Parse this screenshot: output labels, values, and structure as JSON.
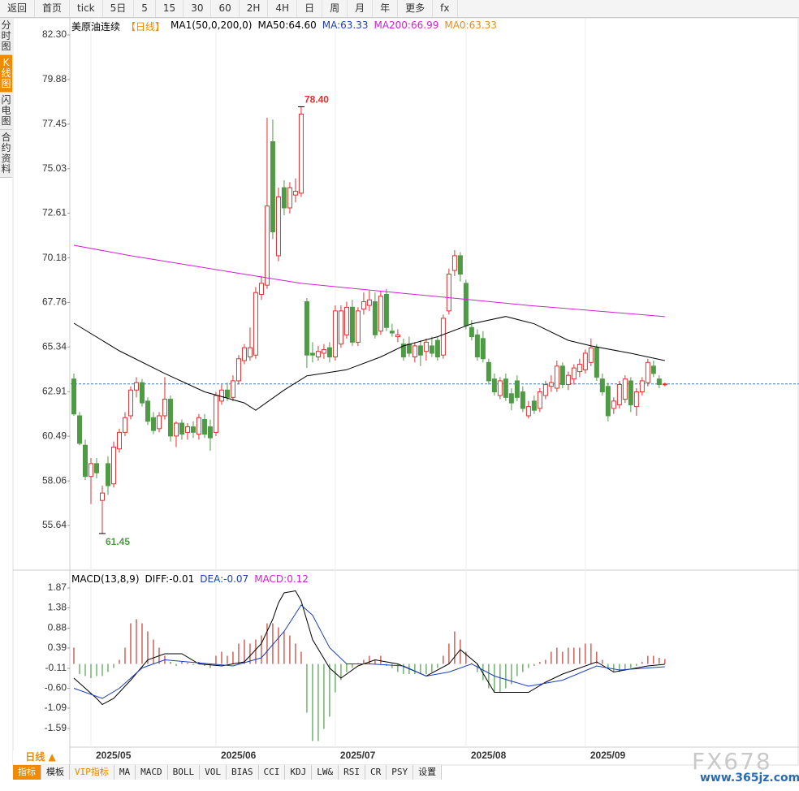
{
  "toolbar": [
    "返回",
    "首页",
    "tick",
    "5日",
    "5",
    "15",
    "30",
    "60",
    "2H",
    "4H",
    "日",
    "周",
    "月",
    "年",
    "更多",
    "fx"
  ],
  "sidebar": [
    "分时图",
    "K线图",
    "闪电图",
    "合约资料"
  ],
  "tabs": [
    "指标",
    "模板",
    "VIP指标",
    "MA",
    "MACD",
    "BOLL",
    "VOL",
    "BIAS",
    "CCI",
    "KDJ",
    "LW&",
    "RSI",
    "CR",
    "PSY",
    "设置"
  ],
  "period": "日线 ▲",
  "watermark": "FX678",
  "watermark_url": "www.365jz.com",
  "chart_data": [
    {
      "type": "candlestick",
      "title": "美原油连续",
      "subtitle": "【日线】",
      "legend": [
        "MA1(50,0,200,0)",
        "MA50:64.60",
        "MA:63.33",
        "MA200:66.99",
        "MA0:63.33"
      ],
      "legend_colors": [
        "#000000",
        "#000000",
        "#1a3fb8",
        "#d21fd2",
        "#e88b1a"
      ],
      "up_color": "#e0302f",
      "down_color": "#4f9a45",
      "xlim": [
        -0.57,
        127.6
      ],
      "ylim": [
        53.3,
        83.23
      ],
      "yticks": [
        {
          "value": 82.3,
          "label": "82.30"
        },
        79.88,
        77.45,
        75.03,
        72.61,
        70.18,
        67.76,
        65.34,
        62.91,
        60.49,
        58.06,
        55.64
      ],
      "xticks": [
        {
          "value": 3,
          "label": "2025/05"
        },
        {
          "value": 25,
          "label": "2025/06"
        },
        {
          "value": 46,
          "label": "2025/07"
        },
        {
          "value": 69,
          "label": "2025/08"
        },
        {
          "value": 90,
          "label": "2025/09"
        }
      ],
      "grid": true,
      "last_price": 63.33,
      "last_price_color": "#3a78c2",
      "annotations": [
        "78.40",
        "61.45"
      ],
      "annotation_colors": [
        "#e0302f",
        "#4f9a45"
      ],
      "ohlc": [
        [
          63.6,
          63.9,
          61.6,
          61.7
        ],
        [
          61.6,
          61.8,
          60.0,
          60.1
        ],
        [
          60.0,
          60.3,
          58.1,
          58.3
        ],
        [
          58.3,
          59.3,
          56.8,
          59.0
        ],
        [
          59.0,
          59.3,
          58.2,
          58.5
        ],
        [
          57.0,
          57.8,
          55.2,
          57.4
        ],
        [
          59.0,
          59.4,
          57.3,
          57.8
        ],
        [
          57.9,
          60.2,
          57.7,
          59.9
        ],
        [
          59.8,
          60.9,
          59.6,
          60.7
        ],
        [
          60.7,
          61.8,
          60.5,
          61.5
        ],
        [
          61.6,
          63.2,
          61.4,
          63.0
        ],
        [
          63.0,
          63.7,
          62.6,
          63.4
        ],
        [
          63.4,
          63.6,
          62.1,
          62.3
        ],
        [
          62.4,
          62.6,
          61.1,
          61.3
        ],
        [
          61.5,
          61.8,
          60.6,
          60.8
        ],
        [
          60.9,
          61.8,
          60.7,
          61.6
        ],
        [
          61.6,
          63.7,
          61.4,
          62.5
        ],
        [
          62.5,
          62.7,
          60.2,
          60.5
        ],
        [
          60.5,
          61.3,
          59.9,
          61.2
        ],
        [
          61.2,
          61.4,
          60.3,
          60.6
        ],
        [
          60.7,
          61.2,
          60.3,
          61.0
        ],
        [
          61.0,
          61.3,
          60.4,
          60.7
        ],
        [
          60.6,
          61.7,
          60.3,
          61.5
        ],
        [
          61.4,
          61.7,
          60.4,
          60.6
        ],
        [
          61.0,
          61.4,
          59.7,
          60.4
        ],
        [
          60.7,
          62.9,
          60.5,
          62.7
        ],
        [
          62.4,
          63.3,
          62.2,
          63.0
        ],
        [
          63.0,
          63.4,
          62.4,
          62.6
        ],
        [
          62.6,
          63.8,
          62.4,
          63.5
        ],
        [
          63.5,
          64.9,
          63.3,
          64.7
        ],
        [
          64.6,
          65.5,
          64.4,
          65.3
        ],
        [
          64.8,
          66.4,
          64.6,
          65.3
        ],
        [
          64.9,
          68.6,
          64.7,
          68.3
        ],
        [
          68.2,
          69.2,
          67.9,
          68.8
        ],
        [
          68.7,
          77.8,
          68.5,
          73.0
        ],
        [
          76.5,
          77.7,
          71.2,
          71.6
        ],
        [
          70.3,
          74.0,
          70.0,
          73.5
        ],
        [
          74.0,
          74.4,
          72.5,
          72.9
        ],
        [
          72.9,
          74.3,
          72.6,
          74.0
        ],
        [
          73.6,
          74.5,
          73.2,
          73.8
        ],
        [
          73.7,
          78.4,
          73.5,
          78.0
        ],
        [
          67.8,
          68.0,
          64.2,
          64.9
        ],
        [
          65.0,
          65.6,
          64.5,
          64.9
        ],
        [
          64.8,
          65.4,
          64.6,
          65.1
        ],
        [
          65.0,
          65.5,
          64.7,
          65.2
        ],
        [
          65.3,
          65.6,
          64.5,
          64.8
        ],
        [
          64.8,
          67.6,
          64.6,
          67.3
        ],
        [
          65.5,
          67.6,
          65.3,
          67.3
        ],
        [
          66.0,
          67.8,
          65.8,
          67.5
        ],
        [
          67.5,
          67.9,
          65.4,
          65.6
        ],
        [
          65.6,
          67.5,
          65.4,
          67.3
        ],
        [
          67.4,
          68.3,
          67.1,
          67.8
        ],
        [
          67.6,
          68.4,
          67.3,
          67.9
        ],
        [
          67.8,
          68.3,
          65.8,
          66.0
        ],
        [
          66.2,
          68.4,
          66.0,
          68.1
        ],
        [
          68.2,
          68.5,
          66.2,
          66.4
        ],
        [
          66.2,
          66.6,
          65.9,
          66.1
        ],
        [
          65.9,
          66.3,
          65.6,
          66.0
        ],
        [
          65.5,
          65.8,
          64.6,
          64.8
        ],
        [
          65.5,
          65.9,
          64.8,
          65.0
        ],
        [
          64.8,
          65.6,
          64.5,
          65.4
        ],
        [
          65.4,
          65.7,
          64.3,
          64.9
        ],
        [
          65.1,
          65.8,
          64.6,
          65.6
        ],
        [
          65.4,
          65.9,
          64.8,
          65.0
        ],
        [
          65.7,
          65.9,
          64.6,
          64.8
        ],
        [
          64.9,
          67.1,
          64.7,
          66.9
        ],
        [
          67.3,
          69.6,
          67.1,
          69.3
        ],
        [
          69.5,
          70.6,
          69.2,
          70.3
        ],
        [
          70.3,
          70.5,
          68.9,
          69.3
        ],
        [
          68.8,
          69.0,
          66.3,
          66.5
        ],
        [
          66.4,
          66.8,
          65.7,
          65.9
        ],
        [
          66.0,
          66.3,
          64.6,
          64.8
        ],
        [
          65.8,
          66.2,
          64.5,
          64.7
        ],
        [
          64.5,
          64.7,
          63.3,
          63.5
        ],
        [
          63.6,
          63.9,
          62.7,
          62.9
        ],
        [
          62.7,
          63.7,
          62.5,
          63.5
        ],
        [
          63.6,
          63.9,
          62.4,
          62.6
        ],
        [
          62.8,
          63.1,
          61.9,
          62.3
        ],
        [
          63.5,
          63.8,
          62.4,
          62.6
        ],
        [
          62.9,
          63.2,
          61.8,
          62.0
        ],
        [
          61.6,
          62.4,
          61.45,
          62.1
        ],
        [
          62.4,
          62.7,
          61.7,
          61.9
        ],
        [
          62.0,
          63.1,
          61.8,
          62.9
        ],
        [
          62.7,
          63.5,
          62.5,
          63.3
        ],
        [
          63.2,
          63.8,
          62.9,
          63.4
        ],
        [
          63.1,
          64.6,
          62.9,
          64.3
        ],
        [
          64.3,
          64.5,
          63.1,
          63.3
        ],
        [
          63.3,
          64.0,
          63.0,
          63.8
        ],
        [
          63.6,
          64.4,
          63.3,
          64.2
        ],
        [
          64.0,
          64.7,
          63.7,
          64.4
        ],
        [
          64.1,
          65.2,
          63.9,
          65.0
        ],
        [
          64.5,
          65.8,
          64.3,
          65.3
        ],
        [
          65.3,
          65.5,
          63.5,
          63.7
        ],
        [
          63.6,
          63.9,
          62.7,
          62.9
        ],
        [
          63.2,
          63.4,
          61.3,
          61.6
        ],
        [
          62.0,
          62.6,
          61.7,
          62.4
        ],
        [
          62.2,
          63.5,
          62.0,
          63.3
        ],
        [
          62.5,
          63.8,
          62.3,
          63.6
        ],
        [
          63.5,
          63.7,
          61.8,
          62.2
        ],
        [
          62.1,
          63.1,
          61.6,
          62.9
        ],
        [
          62.9,
          63.7,
          62.7,
          63.5
        ],
        [
          63.4,
          64.7,
          63.2,
          64.5
        ],
        [
          64.3,
          64.6,
          63.7,
          63.9
        ],
        [
          63.6,
          63.8,
          63.1,
          63.3
        ],
        [
          63.3,
          63.4,
          63.2,
          63.33
        ]
      ],
      "lines": [
        {
          "color": "#000000",
          "x": [
            0,
            8,
            16,
            23,
            30,
            32,
            37,
            41,
            48,
            54,
            58,
            64,
            70,
            76,
            81,
            87,
            91,
            98,
            104
          ],
          "values": [
            66.63,
            65.13,
            63.9,
            62.9,
            62.3,
            61.9,
            63.0,
            63.77,
            64.1,
            64.8,
            65.4,
            65.9,
            66.6,
            67.0,
            66.6,
            65.7,
            65.4,
            65.0,
            64.6
          ]
        },
        {
          "color": "#d21fd2",
          "x": [
            0,
            10,
            20,
            30,
            40,
            50,
            60,
            70,
            80,
            90,
            104
          ],
          "values": [
            70.87,
            70.3,
            69.8,
            69.3,
            68.8,
            68.5,
            68.2,
            67.9,
            67.6,
            67.35,
            66.99
          ]
        }
      ]
    },
    {
      "type": "macd",
      "title": "MACD(13,8,9)",
      "legend": [
        "DIFF:-0.01",
        "DEA:-0.07",
        "MACD:0.12"
      ],
      "legend_colors": [
        "#000000",
        "#1a3fb8",
        "#d21fd2"
      ],
      "xlim": [
        -0.57,
        127.6
      ],
      "ylim": [
        -2.01,
        2.25
      ],
      "yticks": [
        1.87,
        1.38,
        0.88,
        0.39,
        -0.11,
        {
          "value": -0.6,
          "label": "-0.60"
        },
        -1.09,
        -1.59
      ],
      "up_color": "#c23b32",
      "down_color": "#4aa04a",
      "values": [
        0.4,
        -0.25,
        -0.3,
        -0.35,
        -0.3,
        -0.3,
        -0.2,
        -0.1,
        0.1,
        0.4,
        1.0,
        1.1,
        1.0,
        0.8,
        0.6,
        0.4,
        0.2,
        0.05,
        -0.05,
        0.05,
        0.03,
        -0.03,
        0.05,
        -0.05,
        -0.1,
        0.2,
        0.3,
        0.2,
        0.3,
        0.5,
        0.6,
        0.5,
        0.6,
        0.7,
        1.0,
        1.0,
        0.9,
        0.8,
        0.7,
        0.5,
        0.3,
        -1.2,
        -1.9,
        -1.9,
        -1.6,
        -1.3,
        -0.7,
        -0.4,
        -0.2,
        -0.1,
        0.02,
        0.1,
        0.2,
        0.1,
        0.2,
        -0.05,
        -0.1,
        -0.2,
        -0.25,
        -0.25,
        -0.25,
        -0.25,
        -0.25,
        -0.2,
        -0.1,
        0.2,
        0.5,
        0.8,
        0.6,
        0.3,
        0.02,
        -0.2,
        -0.4,
        -0.6,
        -0.7,
        -0.7,
        -0.6,
        -0.5,
        -0.3,
        -0.2,
        -0.1,
        -0.05,
        0.05,
        0.1,
        0.3,
        0.4,
        0.3,
        0.4,
        0.4,
        0.4,
        0.5,
        0.5,
        0.3,
        0.1,
        -0.1,
        -0.2,
        -0.2,
        -0.15,
        -0.1,
        -0.05,
        0.05,
        0.2,
        0.2,
        0.15,
        0.12
      ],
      "lines": [
        {
          "color": "#000000",
          "x": [
            0,
            4,
            5,
            7,
            10,
            13,
            16,
            19,
            22,
            26,
            30,
            33,
            35,
            36,
            37,
            39,
            40,
            42,
            45,
            47,
            50,
            53,
            57,
            62,
            66,
            68,
            71,
            74,
            80,
            83,
            86,
            92,
            95,
            101,
            104
          ],
          "values": [
            -0.35,
            -0.85,
            -1.0,
            -0.85,
            -0.4,
            0.1,
            0.25,
            0.25,
            0.0,
            -0.05,
            0.05,
            0.5,
            1.1,
            1.5,
            1.75,
            1.8,
            1.55,
            0.6,
            -0.1,
            -0.35,
            -0.05,
            0.1,
            0.0,
            -0.3,
            0.0,
            0.35,
            0.0,
            -0.7,
            -0.7,
            -0.45,
            -0.25,
            0.05,
            -0.2,
            -0.05,
            -0.01
          ]
        },
        {
          "color": "#1a3fb8",
          "x": [
            0,
            5,
            8,
            12,
            16,
            20,
            28,
            33,
            37,
            40,
            42,
            45,
            48,
            52,
            58,
            62,
            66,
            70,
            74,
            80,
            86,
            92,
            96,
            104
          ],
          "values": [
            -0.6,
            -0.85,
            -0.6,
            -0.1,
            0.1,
            0.05,
            -0.05,
            0.15,
            0.8,
            1.45,
            1.2,
            0.4,
            0.0,
            0.0,
            -0.05,
            -0.3,
            -0.2,
            0.0,
            -0.3,
            -0.55,
            -0.4,
            -0.05,
            -0.15,
            -0.07
          ]
        }
      ]
    }
  ]
}
